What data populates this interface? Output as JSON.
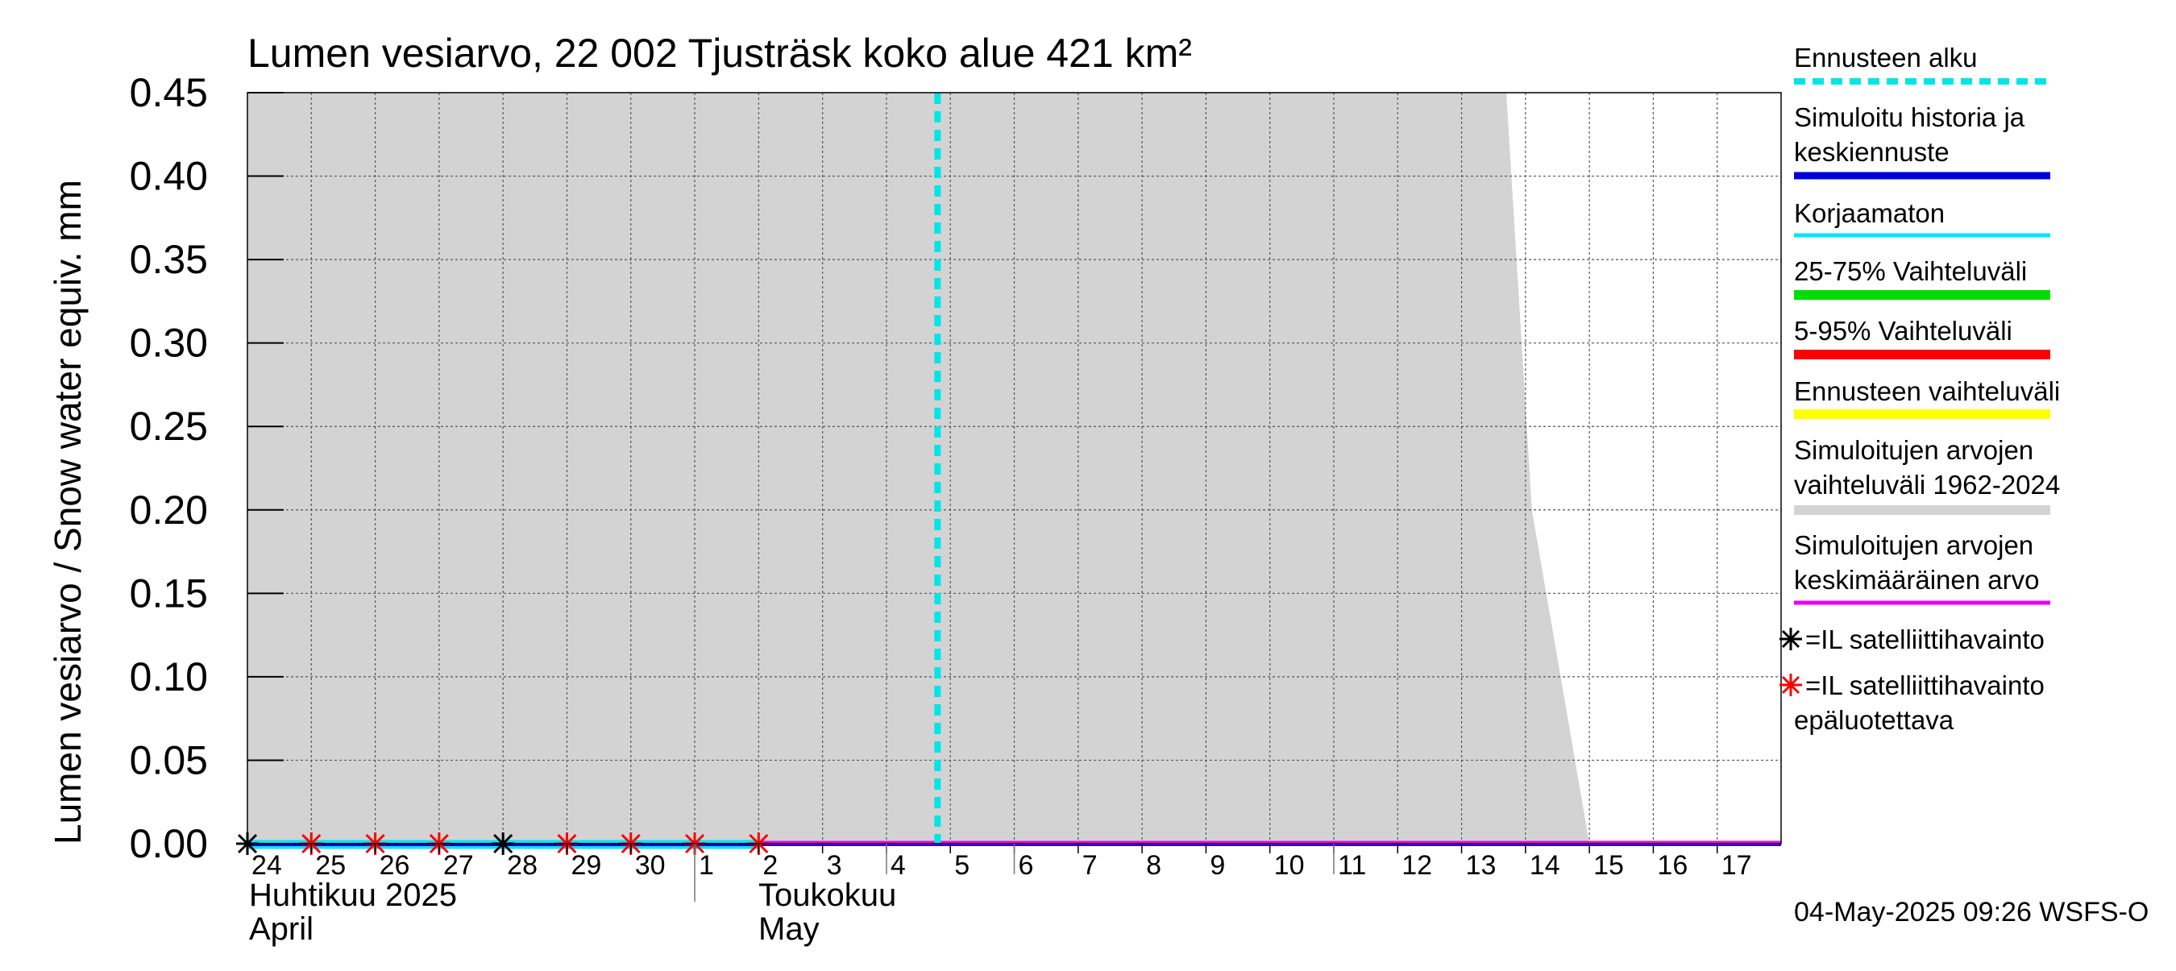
{
  "chart_data": {
    "type": "area",
    "title": "Lumen vesiarvo, 22 002 Tjusträsk koko alue 421 km²",
    "ylabel": "Lumen vesiarvo / Snow water equiv.    mm",
    "ylim": [
      0,
      0.45
    ],
    "yticks": [
      "0.00",
      "0.05",
      "0.10",
      "0.15",
      "0.20",
      "0.25",
      "0.30",
      "0.35",
      "0.40",
      "0.45"
    ],
    "x_start_day": 24,
    "x_end_day": 48,
    "x_tick_labels": [
      "24",
      "25",
      "26",
      "27",
      "28",
      "29",
      "30",
      "1",
      "2",
      "3",
      "4",
      "5",
      "6",
      "7",
      "8",
      "9",
      "10",
      "11",
      "12",
      "13",
      "14",
      "15",
      "16",
      "17"
    ],
    "month_labels": [
      {
        "line1": "Huhtikuu  2025",
        "line2": "April",
        "day": 24
      },
      {
        "line1": "Toukokuu",
        "line2": "May",
        "day": 32
      }
    ],
    "forecast_start_day": 34.8,
    "historical_range_1962_2024": [
      {
        "x": 24,
        "y": 0.45
      },
      {
        "x": 43.7,
        "y": 0.45
      },
      {
        "x": 44.1,
        "y": 0.2
      },
      {
        "x": 45.0,
        "y": 0.0
      }
    ],
    "series": [
      {
        "name": "Simuloitu historia ja keskiennuste",
        "values_zero_from": 24,
        "values_zero_to": 48
      },
      {
        "name": "Korjaamaton",
        "values_zero_from": 24,
        "values_zero_to": 32
      },
      {
        "name": "Simuloitujen arvojen keskimääräinen arvo",
        "values_zero_from": 32,
        "values_zero_to": 48
      }
    ],
    "satellite_reliable": [
      {
        "x": 24,
        "y": 0
      },
      {
        "x": 28,
        "y": 0
      }
    ],
    "satellite_unreliable": [
      {
        "x": 25,
        "y": 0
      },
      {
        "x": 26,
        "y": 0
      },
      {
        "x": 27,
        "y": 0
      },
      {
        "x": 29,
        "y": 0
      },
      {
        "x": 30,
        "y": 0
      },
      {
        "x": 31,
        "y": 0
      },
      {
        "x": 32,
        "y": 0
      }
    ],
    "legend": [
      {
        "label": "Ennusteen alku",
        "color": "#00e5e5",
        "style": "dashed"
      },
      {
        "label": "Simuloitu historia ja keskiennuste",
        "color": "#0000dd",
        "style": "solid"
      },
      {
        "label": "Korjaamaton",
        "color": "#00e5ff",
        "style": "solid"
      },
      {
        "label": "25-75% Vaihteluväli",
        "color": "#00dd00",
        "style": "solid"
      },
      {
        "label": "5-95% Vaihteluväli",
        "color": "#ff0000",
        "style": "solid"
      },
      {
        "label": "Ennusteen vaihteluväli",
        "color": "#ffff00",
        "style": "solid"
      },
      {
        "label": "Simuloitujen arvojen vaihteluväli 1962-2024",
        "color": "#d3d3d3",
        "style": "solid"
      },
      {
        "label": "Simuloitujen arvojen keskimääräinen arvo",
        "color": "#ee00ee",
        "style": "solid"
      }
    ],
    "marker_legend": [
      {
        "label": "=IL satelliittihavainto",
        "color": "#000000"
      },
      {
        "label": "=IL satelliittihavainto epäluotettava",
        "color": "#ff0000"
      }
    ],
    "footer": "04-May-2025 09:26 WSFS-O"
  }
}
